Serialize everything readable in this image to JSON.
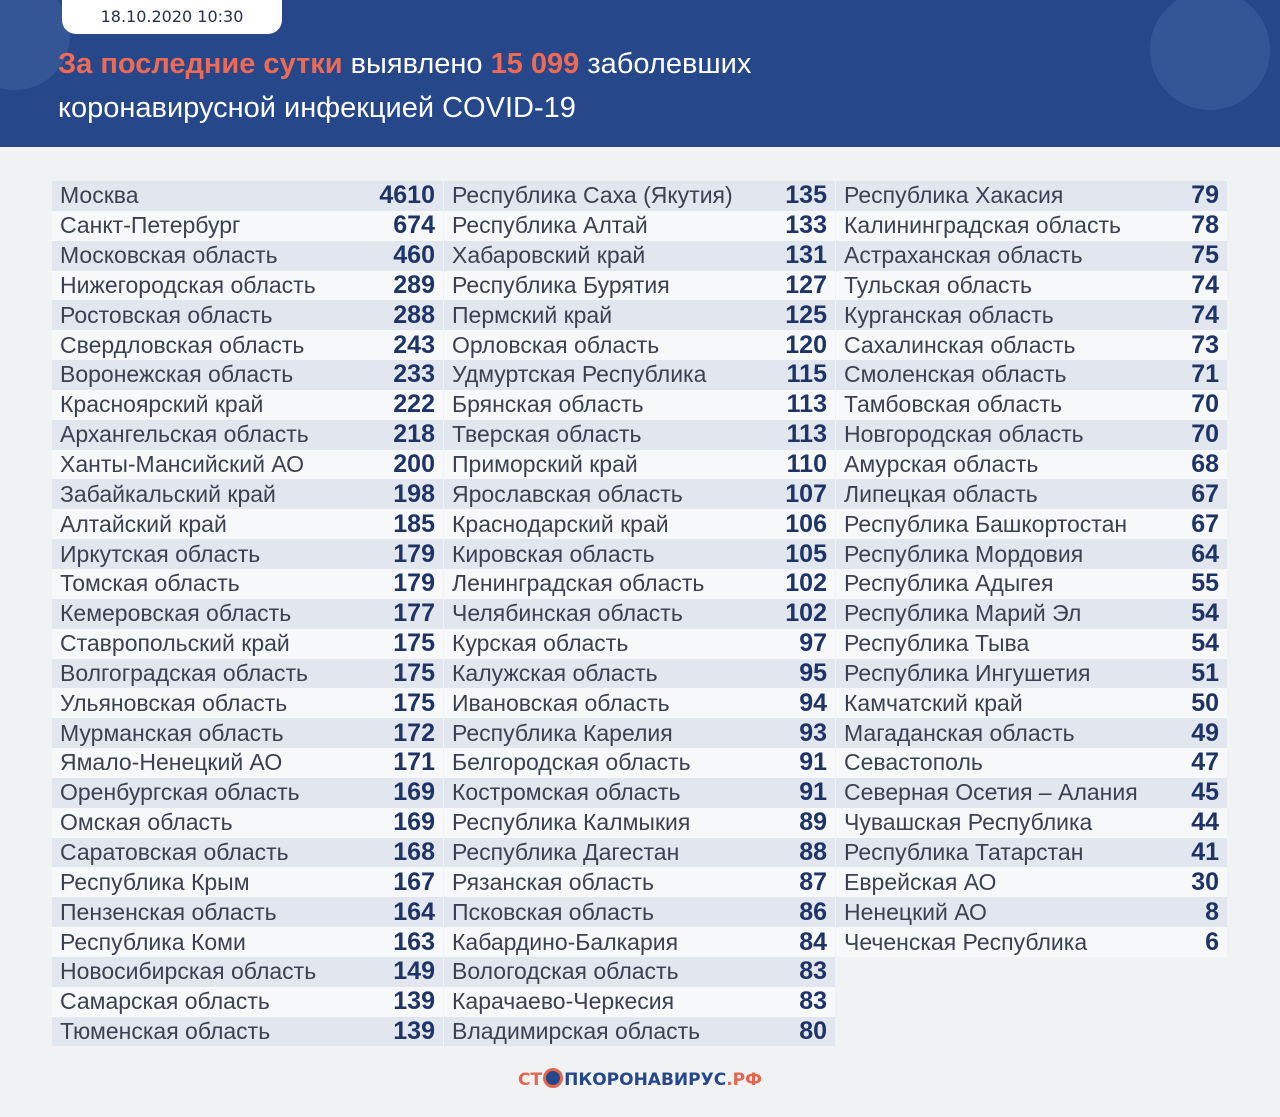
{
  "header": {
    "date": "18.10.2020 10:30",
    "title_highlight": "За последние сутки",
    "title_mid": " выявлено ",
    "title_count": "15 099",
    "title_end": " заболевших",
    "title_line2": "коронавирусной инфекцией COVID-19"
  },
  "colors": {
    "header_bg": "#26478a",
    "accent": "#ef6a55",
    "value": "#1e3466"
  },
  "columns": [
    [
      [
        "Москва",
        "4610"
      ],
      [
        "Санкт-Петербург",
        "674"
      ],
      [
        "Московская область",
        "460"
      ],
      [
        "Нижегородская область",
        "289"
      ],
      [
        "Ростовская область",
        "288"
      ],
      [
        "Свердловская область",
        "243"
      ],
      [
        "Воронежская область",
        "233"
      ],
      [
        "Красноярский край",
        "222"
      ],
      [
        "Архангельская область",
        "218"
      ],
      [
        "Ханты-Мансийский АО",
        "200"
      ],
      [
        "Забайкальский край",
        "198"
      ],
      [
        "Алтайский край",
        "185"
      ],
      [
        "Иркутская область",
        "179"
      ],
      [
        "Томская область",
        "179"
      ],
      [
        "Кемеровская область",
        "177"
      ],
      [
        "Ставропольский край",
        "175"
      ],
      [
        "Волгоградская область",
        "175"
      ],
      [
        "Ульяновская область",
        "175"
      ],
      [
        "Мурманская область",
        "172"
      ],
      [
        "Ямало-Ненецкий АО",
        "171"
      ],
      [
        "Оренбургская область",
        "169"
      ],
      [
        "Омская область",
        "169"
      ],
      [
        "Саратовская область",
        "168"
      ],
      [
        "Республика Крым",
        "167"
      ],
      [
        "Пензенская область",
        "164"
      ],
      [
        "Республика Коми",
        "163"
      ],
      [
        "Новосибирская область",
        "149"
      ],
      [
        "Самарская область",
        "139"
      ],
      [
        "Тюменская область",
        "139"
      ]
    ],
    [
      [
        "Республика Саха (Якутия)",
        "135"
      ],
      [
        "Республика Алтай",
        "133"
      ],
      [
        "Хабаровский край",
        "131"
      ],
      [
        "Республика Бурятия",
        "127"
      ],
      [
        "Пермский край",
        "125"
      ],
      [
        "Орловская область",
        "120"
      ],
      [
        "Удмуртская Республика",
        "115"
      ],
      [
        "Брянская область",
        "113"
      ],
      [
        "Тверская область",
        "113"
      ],
      [
        "Приморский край",
        "110"
      ],
      [
        "Ярославская область",
        "107"
      ],
      [
        "Краснодарский край",
        "106"
      ],
      [
        "Кировская область",
        "105"
      ],
      [
        "Ленинградская область",
        "102"
      ],
      [
        "Челябинская область",
        "102"
      ],
      [
        "Курская область",
        "97"
      ],
      [
        "Калужская область",
        "95"
      ],
      [
        "Ивановская область",
        "94"
      ],
      [
        "Республика Карелия",
        "93"
      ],
      [
        "Белгородская область",
        "91"
      ],
      [
        "Костромская область",
        "91"
      ],
      [
        "Республика Калмыкия",
        "89"
      ],
      [
        "Республика Дагестан",
        "88"
      ],
      [
        "Рязанская область",
        "87"
      ],
      [
        "Псковская область",
        "86"
      ],
      [
        "Кабардино-Балкария",
        "84"
      ],
      [
        "Вологодская область",
        "83"
      ],
      [
        "Карачаево-Черкесия",
        "83"
      ],
      [
        "Владимирская область",
        "80"
      ]
    ],
    [
      [
        "Республика Хакасия",
        "79"
      ],
      [
        "Калининградская область",
        "78"
      ],
      [
        "Астраханская область",
        "75"
      ],
      [
        "Тульская область",
        "74"
      ],
      [
        "Курганская область",
        "74"
      ],
      [
        "Сахалинская область",
        "73"
      ],
      [
        "Смоленская область",
        "71"
      ],
      [
        "Тамбовская область",
        "70"
      ],
      [
        "Новгородская область",
        "70"
      ],
      [
        "Амурская область",
        "68"
      ],
      [
        "Липецкая область",
        "67"
      ],
      [
        "Республика Башкортостан",
        "67"
      ],
      [
        "Республика Мордовия",
        "64"
      ],
      [
        "Республика Адыгея",
        "55"
      ],
      [
        "Республика Марий Эл",
        "54"
      ],
      [
        "Республика Тыва",
        "54"
      ],
      [
        "Республика Ингушетия",
        "51"
      ],
      [
        "Камчатский край",
        "50"
      ],
      [
        "Магаданская область",
        "49"
      ],
      [
        "Севастополь",
        "47"
      ],
      [
        "Северная Осетия – Алания",
        "45"
      ],
      [
        "Чувашская Республика",
        "44"
      ],
      [
        "Республика Татарстан",
        "41"
      ],
      [
        "Еврейская АО",
        "30"
      ],
      [
        "Ненецкий АО",
        "8"
      ],
      [
        "Чеченская Республика",
        "6"
      ]
    ]
  ],
  "footer": {
    "logo_a": "СТ",
    "logo_b": "ПКОРОНАВИРУС",
    "logo_c": ".РФ"
  }
}
